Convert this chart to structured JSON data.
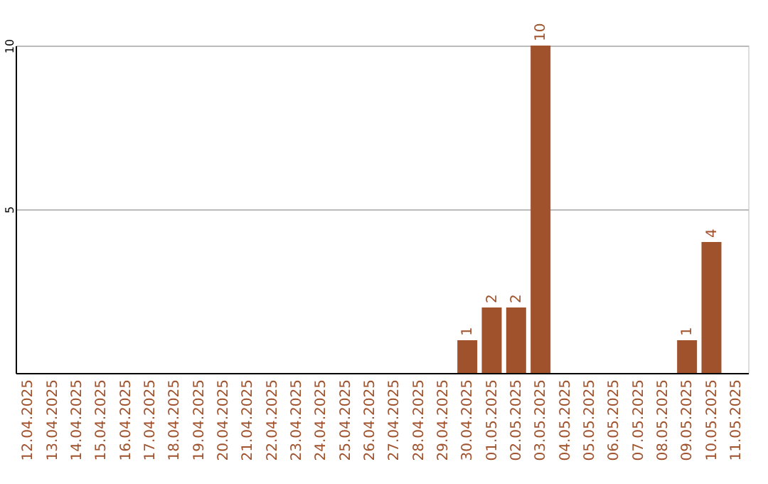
{
  "chart_data": {
    "type": "bar",
    "categories": [
      "12.04.2025",
      "13.04.2025",
      "14.04.2025",
      "15.04.2025",
      "16.04.2025",
      "17.04.2025",
      "18.04.2025",
      "19.04.2025",
      "20.04.2025",
      "21.04.2025",
      "22.04.2025",
      "23.04.2025",
      "24.04.2025",
      "25.04.2025",
      "26.04.2025",
      "27.04.2025",
      "28.04.2025",
      "29.04.2025",
      "30.04.2025",
      "01.05.2025",
      "02.05.2025",
      "03.05.2025",
      "04.05.2025",
      "05.05.2025",
      "06.05.2025",
      "07.05.2025",
      "08.05.2025",
      "09.05.2025",
      "10.05.2025",
      "11.05.2025"
    ],
    "values": [
      0,
      0,
      0,
      0,
      0,
      0,
      0,
      0,
      0,
      0,
      0,
      0,
      0,
      0,
      0,
      0,
      0,
      0,
      1,
      2,
      2,
      10,
      0,
      0,
      0,
      0,
      0,
      1,
      4,
      0
    ],
    "value_labels": [
      null,
      null,
      null,
      null,
      null,
      null,
      null,
      null,
      null,
      null,
      null,
      null,
      null,
      null,
      null,
      null,
      null,
      null,
      "1",
      "2",
      "2",
      "10",
      null,
      null,
      null,
      null,
      null,
      "1",
      "4",
      null
    ],
    "color": "#a0522d",
    "ylim": [
      0,
      10
    ],
    "yticks": [
      5,
      10
    ],
    "grid": "y"
  }
}
